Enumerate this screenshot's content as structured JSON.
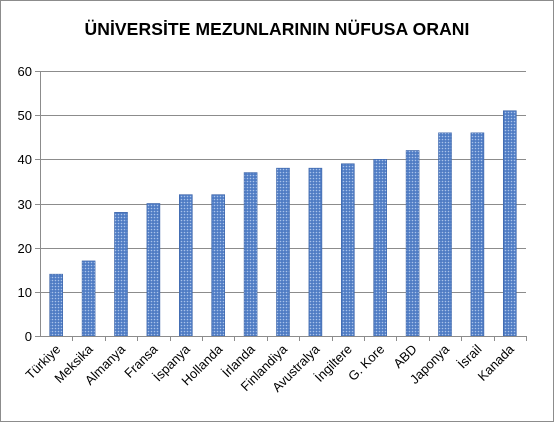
{
  "chart_data": {
    "type": "bar",
    "title": "ÜNİVERSİTE MEZUNLARININ NÜFUSA ORANI",
    "categories": [
      "Türkiye",
      "Meksika",
      "Almanya",
      "Fransa",
      "İspanya",
      "Hollanda",
      "İrlanda",
      "Finlandiya",
      "Avustralya",
      "İngiltere",
      "G. Kore",
      "ABD",
      "Japonya",
      "İsrail",
      "Kanada"
    ],
    "values": [
      14,
      17,
      28,
      30,
      32,
      32,
      37,
      38,
      38,
      39,
      40,
      42,
      46,
      46,
      51
    ],
    "y_ticks": [
      "0",
      "10",
      "20",
      "30",
      "40",
      "50",
      "60"
    ],
    "ylim": [
      0,
      60
    ],
    "grid": true,
    "legend": "none",
    "colors": {
      "bar_fill": "#5b86c9",
      "bar_stroke": "#3c64a8",
      "grid": "#8c8c8c",
      "axis": "#8c8c8c"
    }
  }
}
